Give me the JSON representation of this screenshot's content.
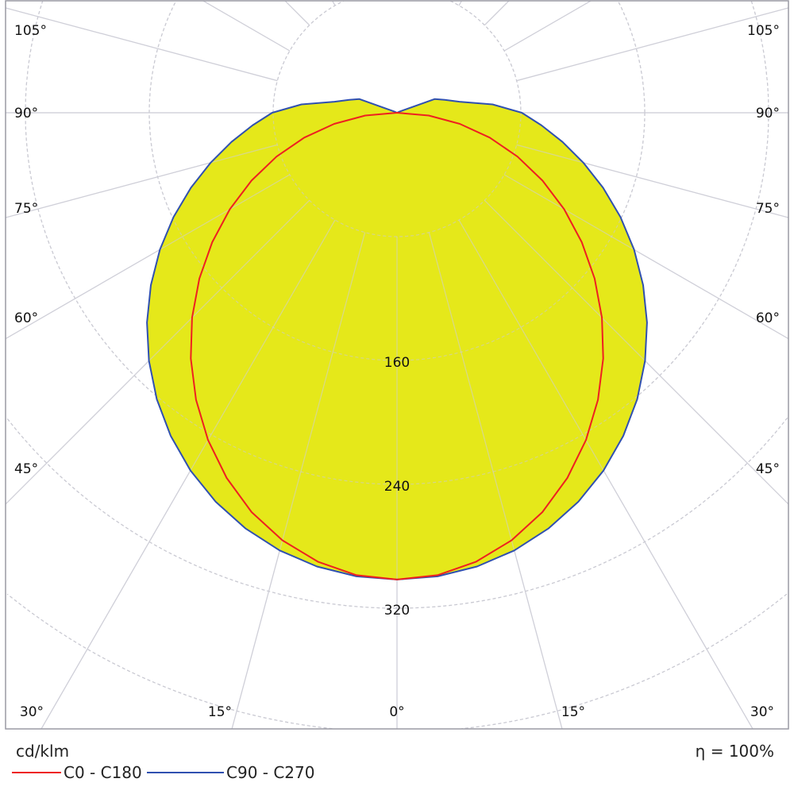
{
  "chart_data": {
    "type": "polar",
    "unit": "cd/klm",
    "efficiency": "η = 100%",
    "radial_ticks": [
      80,
      160,
      240,
      320,
      400,
      480
    ],
    "radial_tick_labels": [
      "160",
      "240",
      "320"
    ],
    "angle_step_deg": 15,
    "angle_labels_left": [
      "105°",
      "90°",
      "75°",
      "60°",
      "45°"
    ],
    "angle_labels_bottom": [
      "30°",
      "15°",
      "0°",
      "15°",
      "30°"
    ],
    "angle_labels_right": [
      "105°",
      "90°",
      "75°",
      "60°",
      "45°"
    ],
    "grid": true,
    "legend_position": "bottom-left",
    "fill_color": "#e5e81a",
    "angles": [
      0,
      5,
      10,
      15,
      20,
      25,
      30,
      35,
      40,
      45,
      50,
      55,
      60,
      65,
      70,
      75,
      80,
      85,
      90,
      95,
      100,
      105,
      110,
      115,
      120,
      180
    ],
    "series": [
      {
        "name": "C0 - C180",
        "color": "#ee2020",
        "values": [
          301.5,
          299.8,
          294.4,
          285.9,
          274.5,
          260.3,
          244.1,
          226.3,
          207.2,
          187.2,
          166.6,
          145.7,
          124.7,
          103.7,
          82.8,
          62.0,
          41.2,
          20.6,
          0,
          0,
          0,
          0,
          0,
          0,
          0,
          0
        ]
      },
      {
        "name": "C90 - C270",
        "color": "#3050b0",
        "values": [
          301.5,
          300.6,
          297.6,
          292.7,
          285.8,
          277.2,
          266.8,
          254.8,
          241.4,
          226.6,
          210.8,
          194.1,
          176.8,
          159.2,
          141.6,
          124.6,
          108.5,
          93.7,
          80.6,
          62,
          41,
          32,
          26,
          2,
          0,
          0
        ]
      }
    ]
  }
}
